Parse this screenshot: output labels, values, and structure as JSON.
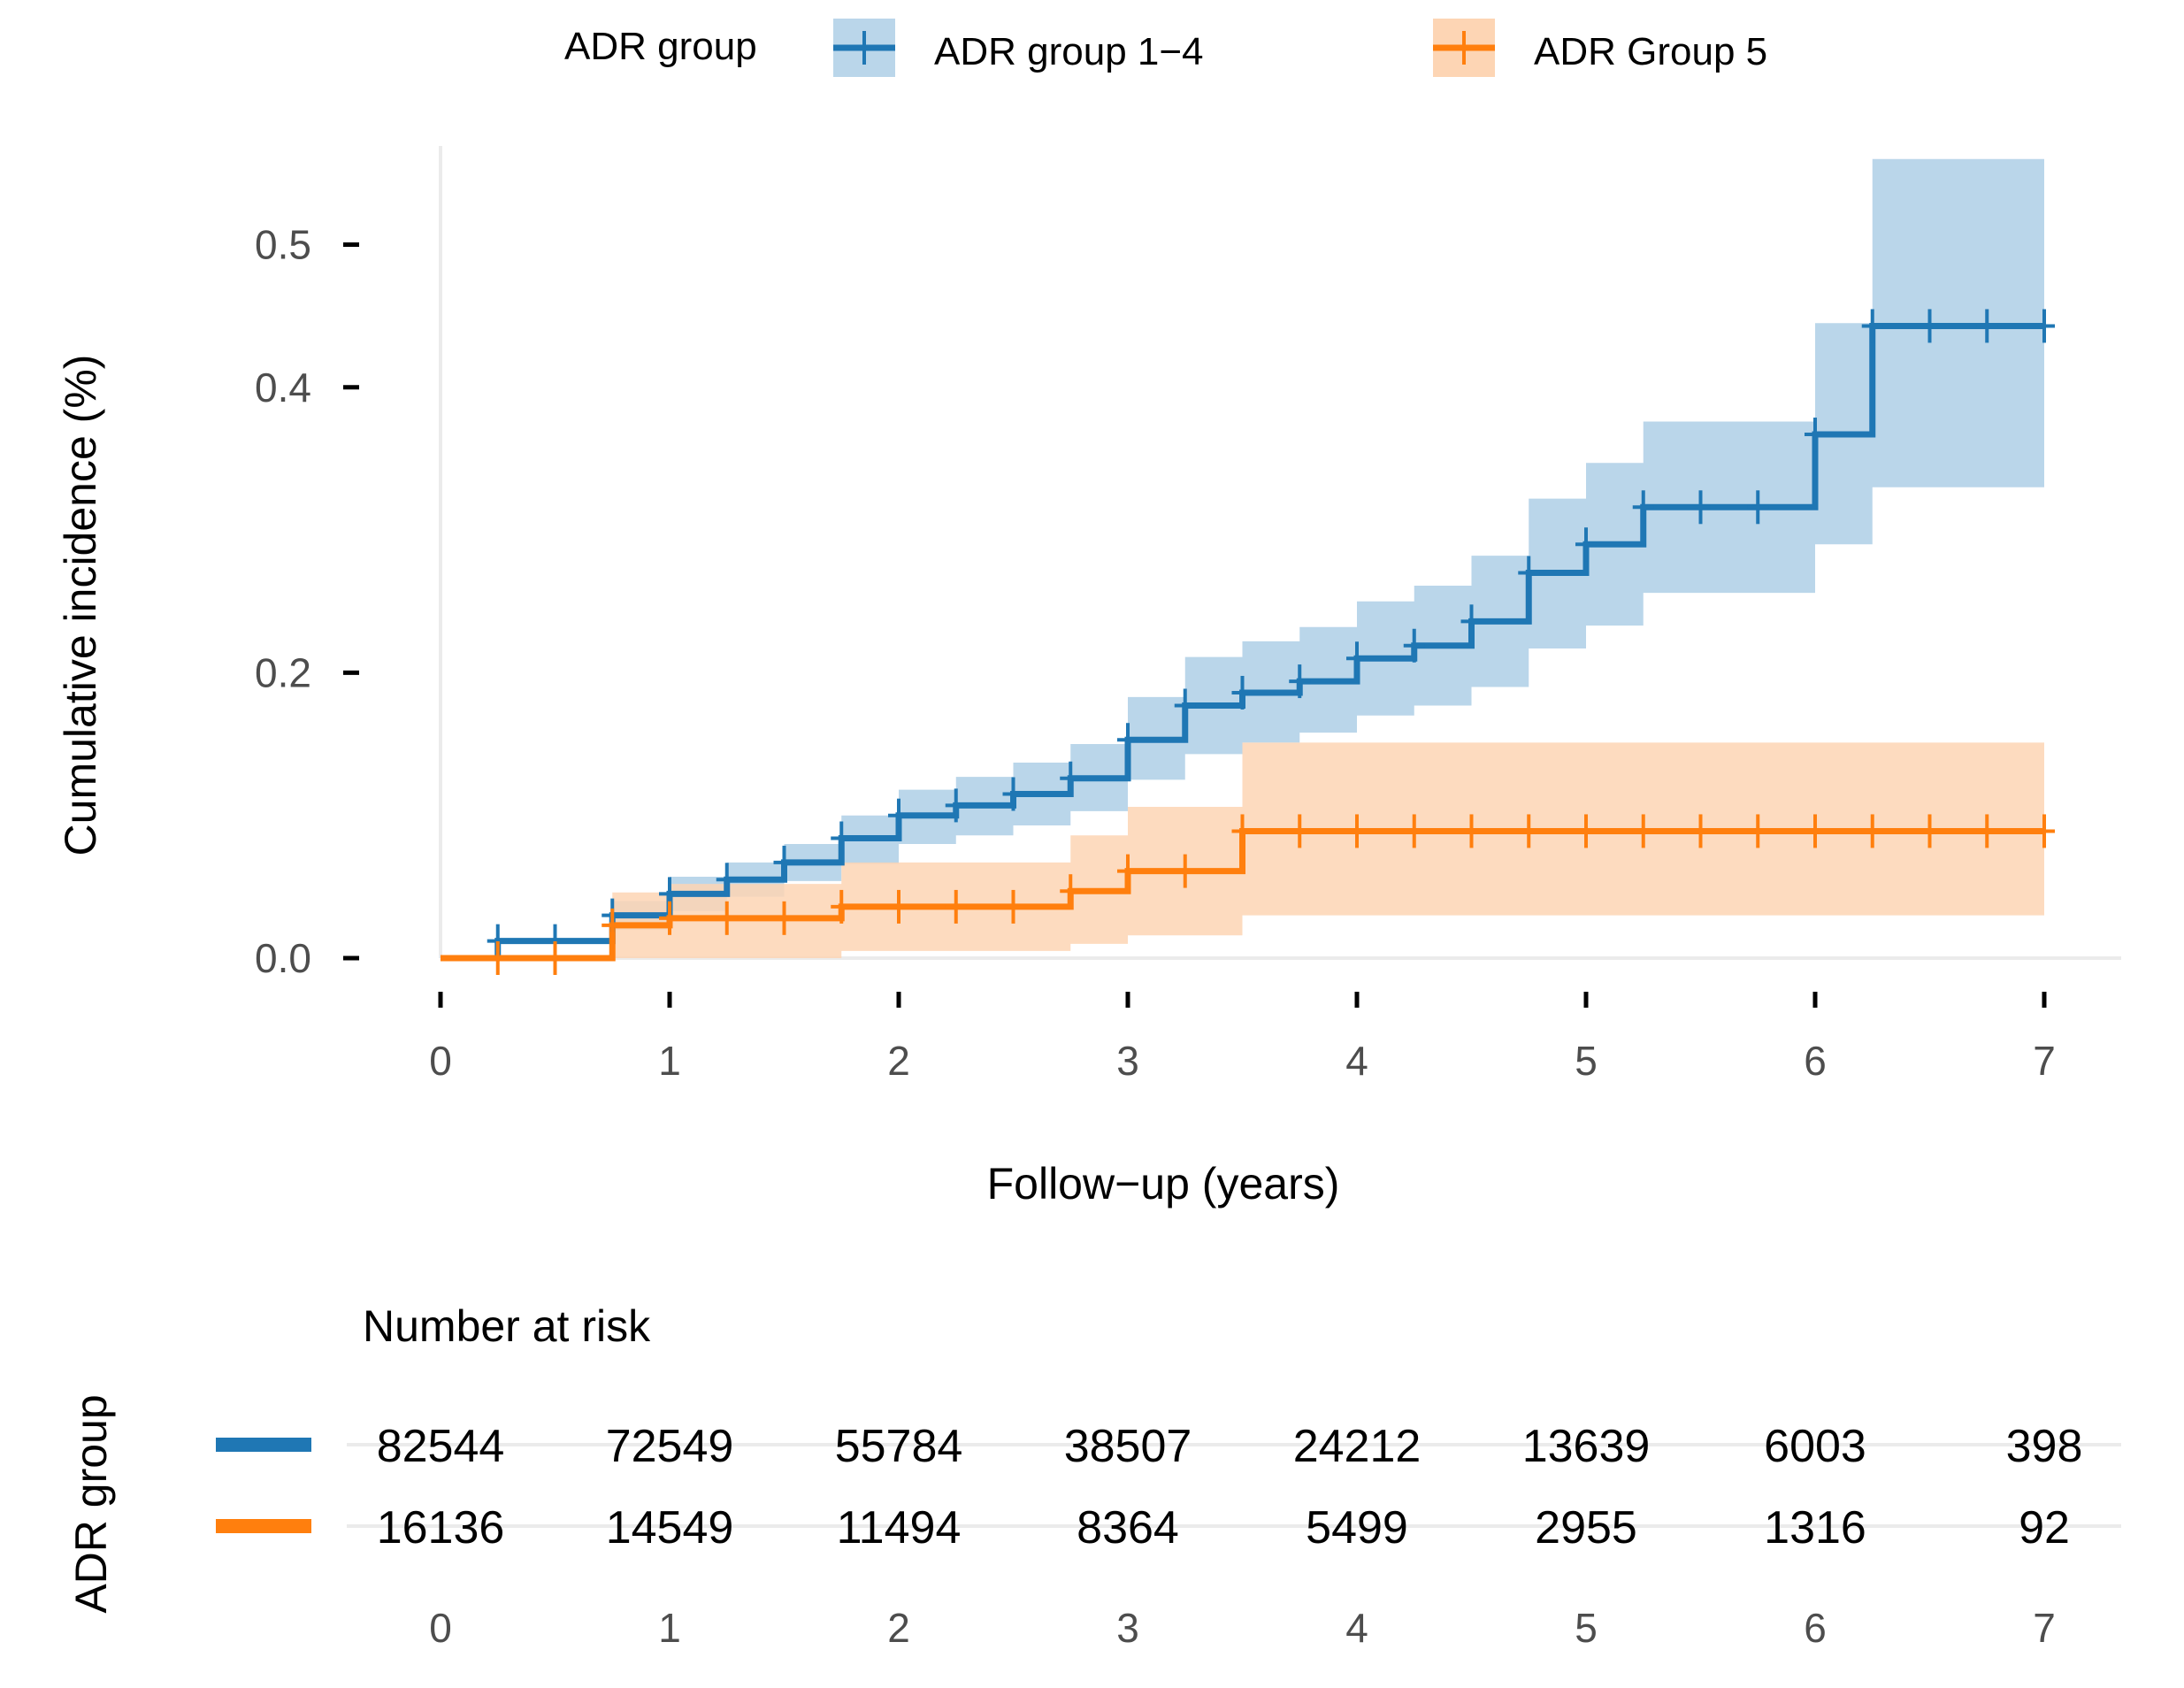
{
  "chart_data": [
    {
      "type": "line",
      "subtype": "step cumulative incidence with confidence bands and censor marks",
      "xlabel": "Follow−up (years)",
      "ylabel": "Cumulative incidence  (%)",
      "xlim": [
        0,
        7
      ],
      "ylim": [
        0,
        0.5
      ],
      "xticks": [
        "0",
        "1",
        "2",
        "3",
        "4",
        "5",
        "6",
        "7"
      ],
      "yticks": [
        "0.0",
        "0.2",
        "0.4",
        "0.5"
      ],
      "ytick_values": [
        0.0,
        0.2,
        0.4,
        0.5
      ],
      "grid": "x-axis baseline only",
      "legend": {
        "title": "ADR group",
        "position": "top"
      },
      "series": [
        {
          "name": "ADR group 1−4",
          "color": "#1f77b4",
          "band_color": "#bad6ea",
          "steps": [
            {
              "x": 0,
              "y": 0.0
            },
            {
              "x": 0.25,
              "y": 0.012
            },
            {
              "x": 0.75,
              "y": 0.03
            },
            {
              "x": 1.0,
              "y": 0.045
            },
            {
              "x": 1.25,
              "y": 0.055
            },
            {
              "x": 1.5,
              "y": 0.067
            },
            {
              "x": 1.75,
              "y": 0.084
            },
            {
              "x": 2.0,
              "y": 0.1
            },
            {
              "x": 2.25,
              "y": 0.107
            },
            {
              "x": 2.5,
              "y": 0.115
            },
            {
              "x": 2.75,
              "y": 0.126
            },
            {
              "x": 3.0,
              "y": 0.153
            },
            {
              "x": 3.25,
              "y": 0.177
            },
            {
              "x": 3.5,
              "y": 0.186
            },
            {
              "x": 3.75,
              "y": 0.194
            },
            {
              "x": 4.0,
              "y": 0.21
            },
            {
              "x": 4.25,
              "y": 0.219
            },
            {
              "x": 4.5,
              "y": 0.236
            },
            {
              "x": 4.75,
              "y": 0.27
            },
            {
              "x": 5.0,
              "y": 0.29
            },
            {
              "x": 5.25,
              "y": 0.316
            },
            {
              "x": 6.0,
              "y": 0.367
            },
            {
              "x": 6.25,
              "y": 0.443
            }
          ],
          "x_end": 7.0,
          "ci_band": [
            {
              "x": 0,
              "lo": 0.0,
              "hi": 0.0
            },
            {
              "x": 0.75,
              "lo": 0.02,
              "hi": 0.04
            },
            {
              "x": 1.0,
              "lo": 0.033,
              "hi": 0.057
            },
            {
              "x": 1.25,
              "lo": 0.043,
              "hi": 0.067
            },
            {
              "x": 1.5,
              "lo": 0.054,
              "hi": 0.08
            },
            {
              "x": 1.75,
              "lo": 0.066,
              "hi": 0.1
            },
            {
              "x": 2.0,
              "lo": 0.08,
              "hi": 0.118
            },
            {
              "x": 2.25,
              "lo": 0.086,
              "hi": 0.127
            },
            {
              "x": 2.5,
              "lo": 0.093,
              "hi": 0.137
            },
            {
              "x": 2.75,
              "lo": 0.103,
              "hi": 0.15
            },
            {
              "x": 3.0,
              "lo": 0.125,
              "hi": 0.183
            },
            {
              "x": 3.25,
              "lo": 0.143,
              "hi": 0.211
            },
            {
              "x": 3.5,
              "lo": 0.151,
              "hi": 0.222
            },
            {
              "x": 3.75,
              "lo": 0.158,
              "hi": 0.232
            },
            {
              "x": 4.0,
              "lo": 0.17,
              "hi": 0.25
            },
            {
              "x": 4.25,
              "lo": 0.177,
              "hi": 0.261
            },
            {
              "x": 4.5,
              "lo": 0.19,
              "hi": 0.282
            },
            {
              "x": 4.75,
              "lo": 0.217,
              "hi": 0.322
            },
            {
              "x": 5.0,
              "lo": 0.233,
              "hi": 0.347
            },
            {
              "x": 5.25,
              "lo": 0.256,
              "hi": 0.376
            },
            {
              "x": 6.0,
              "lo": 0.29,
              "hi": 0.445
            },
            {
              "x": 6.25,
              "lo": 0.33,
              "hi": 0.56
            }
          ],
          "censor_x": [
            0.25,
            0.5,
            0.75,
            1.0,
            1.25,
            1.5,
            1.75,
            2.0,
            2.25,
            2.5,
            2.75,
            3.0,
            3.25,
            3.5,
            3.75,
            4.0,
            4.25,
            4.5,
            4.75,
            5.0,
            5.25,
            5.5,
            5.75,
            6.0,
            6.25,
            6.5,
            6.75,
            7.0
          ]
        },
        {
          "name": "ADR Group 5",
          "color": "#ff7f0e",
          "band_color": "#fdd5b4",
          "steps": [
            {
              "x": 0,
              "y": 0.0
            },
            {
              "x": 0.75,
              "y": 0.023
            },
            {
              "x": 1.0,
              "y": 0.028
            },
            {
              "x": 1.75,
              "y": 0.036
            },
            {
              "x": 2.75,
              "y": 0.047
            },
            {
              "x": 3.0,
              "y": 0.061
            },
            {
              "x": 3.5,
              "y": 0.089
            }
          ],
          "x_end": 7.0,
          "ci_band": [
            {
              "x": 0,
              "lo": 0.0,
              "hi": 0.0
            },
            {
              "x": 0.75,
              "lo": 0.0,
              "hi": 0.046
            },
            {
              "x": 1.0,
              "lo": 0.0,
              "hi": 0.052
            },
            {
              "x": 1.75,
              "lo": 0.005,
              "hi": 0.067
            },
            {
              "x": 2.75,
              "lo": 0.01,
              "hi": 0.086
            },
            {
              "x": 3.0,
              "lo": 0.016,
              "hi": 0.106
            },
            {
              "x": 3.5,
              "lo": 0.03,
              "hi": 0.151
            }
          ],
          "censor_x": [
            0.25,
            0.5,
            0.75,
            1.0,
            1.25,
            1.5,
            1.75,
            2.0,
            2.25,
            2.5,
            2.75,
            3.0,
            3.25,
            3.5,
            3.75,
            4.0,
            4.25,
            4.5,
            4.75,
            5.0,
            5.25,
            5.5,
            5.75,
            6.0,
            6.25,
            6.5,
            6.75,
            7.0
          ]
        }
      ]
    },
    {
      "type": "table",
      "title": "Number at risk",
      "ylabel": "ADR group",
      "columns": [
        "0",
        "1",
        "2",
        "3",
        "4",
        "5",
        "6",
        "7"
      ],
      "rows": [
        {
          "color": "#1f77b4",
          "values": [
            "82544",
            "72549",
            "55784",
            "38507",
            "24212",
            "13639",
            "6003",
            "398"
          ]
        },
        {
          "color": "#ff7f0e",
          "values": [
            "16136",
            "14549",
            "11494",
            "8364",
            "5499",
            "2955",
            "1316",
            "92"
          ]
        }
      ]
    }
  ]
}
